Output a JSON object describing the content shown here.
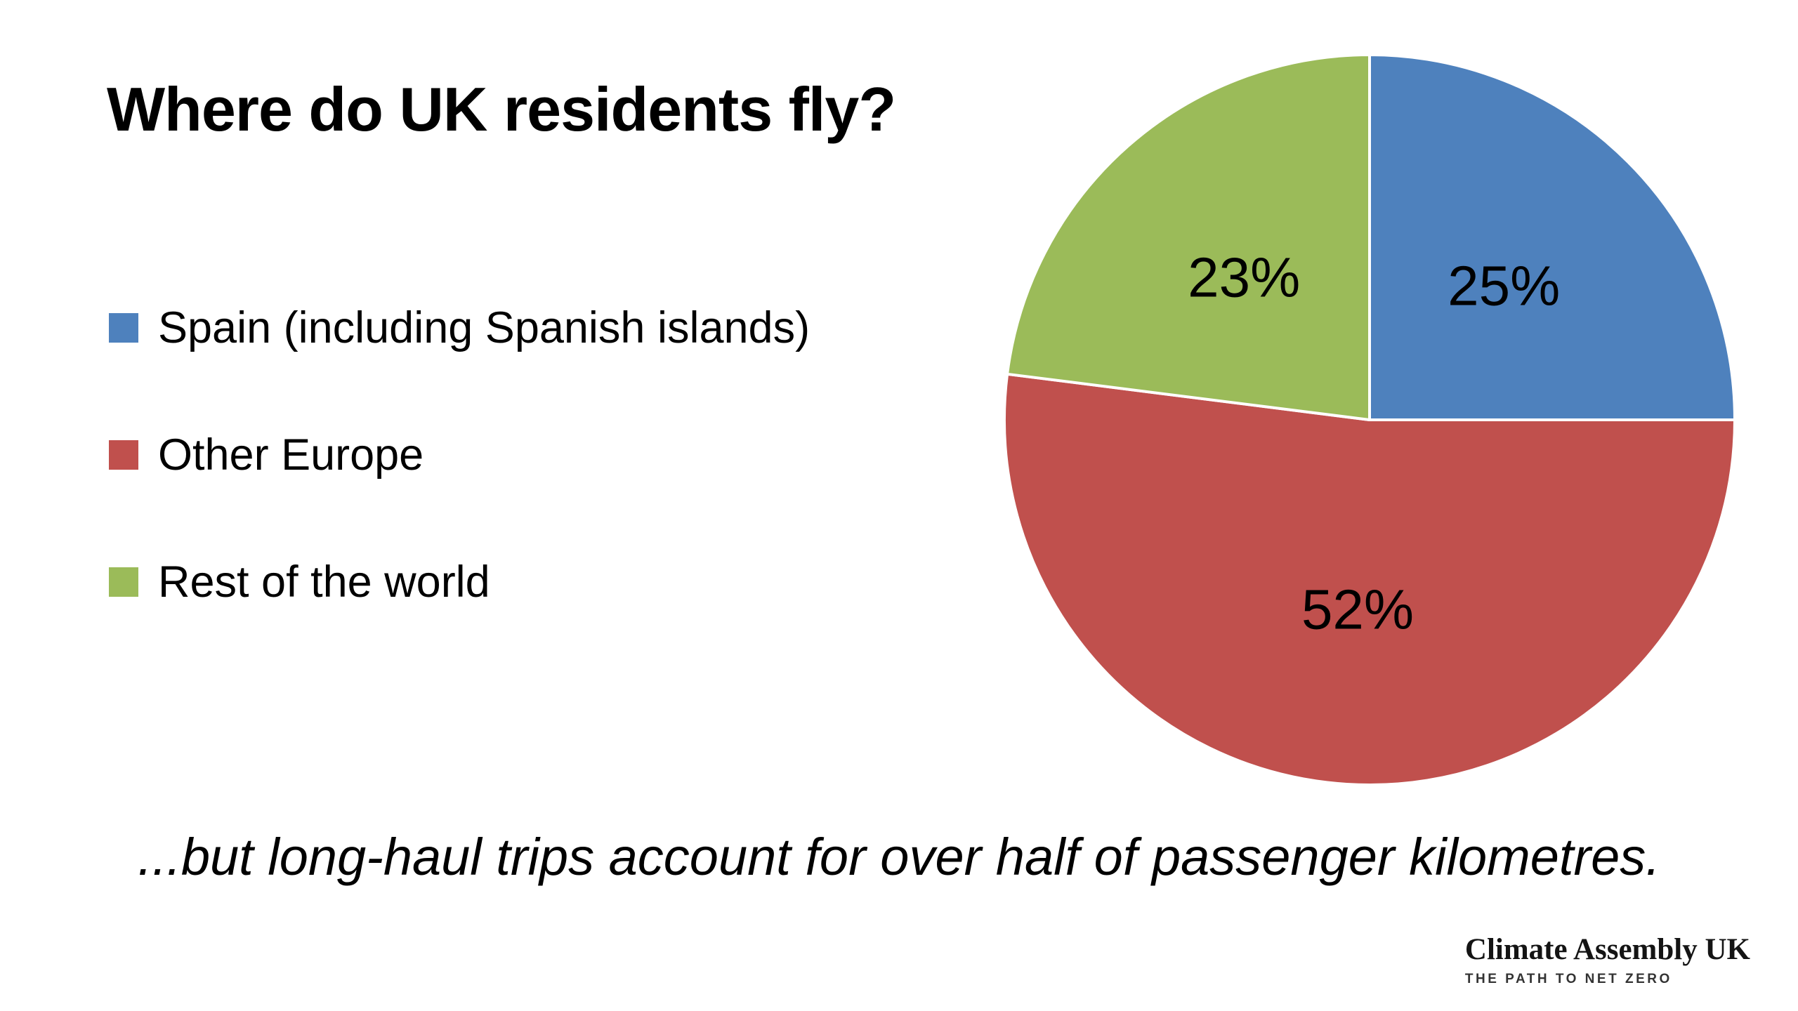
{
  "title": "Where do UK residents fly?",
  "legend": {
    "items": [
      {
        "label": "Spain (including Spanish islands)",
        "color": "#4E81BD"
      },
      {
        "label": "Other Europe",
        "color": "#C0504D"
      },
      {
        "label": "Rest of the world",
        "color": "#9BBB59"
      }
    ]
  },
  "chart_data": {
    "type": "pie",
    "title": "Where do UK residents fly?",
    "categories": [
      "Spain (including Spanish islands)",
      "Other Europe",
      "Rest of the world"
    ],
    "values": [
      25,
      52,
      23
    ],
    "labels": [
      "25%",
      "52%",
      "23%"
    ],
    "colors": [
      "#4E81BD",
      "#C0504D",
      "#9BBB59"
    ],
    "start_angle_deg": 0,
    "direction": "clockwise",
    "legend_position": "left",
    "slice_border_color": "#FFFFFF",
    "label_color": "#000000"
  },
  "caption": "...but long-haul trips account for over half of passenger kilometres.",
  "logo": {
    "name": "Climate Assembly UK",
    "tagline": "THE PATH TO NET ZERO"
  }
}
